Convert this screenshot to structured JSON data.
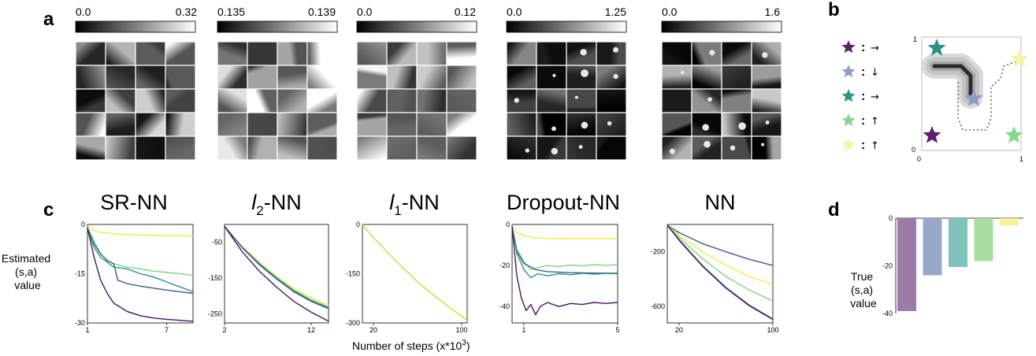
{
  "panel_letters": {
    "a": "a",
    "b": "b",
    "c": "c",
    "d": "d"
  },
  "heatmaps": [
    {
      "cb_min": "0.0",
      "cb_max": "0.32"
    },
    {
      "cb_min": "0.135",
      "cb_max": "0.139"
    },
    {
      "cb_min": "0.0",
      "cb_max": "0.12"
    },
    {
      "cb_min": "0.0",
      "cb_max": "1.25"
    },
    {
      "cb_min": "0.0",
      "cb_max": "1.6"
    }
  ],
  "panel_b": {
    "legend": [
      {
        "color": "#5b1f6e",
        "sep": ":",
        "arrow": "→"
      },
      {
        "color": "#8d9dc7",
        "sep": ":",
        "arrow": "↓"
      },
      {
        "color": "#2c8f8a",
        "sep": ":",
        "arrow": "→"
      },
      {
        "color": "#86d68f",
        "sep": ":",
        "arrow": "↑"
      },
      {
        "color": "#f6f2a6",
        "sep": ":",
        "arrow": "↑"
      }
    ],
    "axis": {
      "y_top": "1",
      "y_bottom": "0",
      "x_left": "0",
      "x_right": "1"
    }
  },
  "chart_data": [
    {
      "type": "line",
      "title": "SR-NN",
      "title_parts": {
        "main": "SR-NN"
      },
      "ylabel": "Estimated\n(s,a)\nvalue",
      "xlim": [
        1,
        9
      ],
      "ylim": [
        -30,
        0
      ],
      "xticks": [
        1,
        7
      ],
      "yticks": [
        0,
        -15,
        -30
      ],
      "series": [
        {
          "color": "#f2e94a",
          "x": [
            1,
            1.5,
            2,
            3,
            4,
            5,
            6,
            7,
            8,
            9
          ],
          "y": [
            -0.5,
            -1.8,
            -2.4,
            -2.9,
            -3.1,
            -3.2,
            -3.3,
            -3.4,
            -3.4,
            -3.5
          ]
        },
        {
          "color": "#7bd57e",
          "x": [
            1,
            1.5,
            2,
            2.5,
            3,
            4,
            5,
            6,
            7,
            8,
            9
          ],
          "y": [
            -1,
            -5,
            -9,
            -11,
            -12,
            -13,
            -13.5,
            -14.2,
            -14.6,
            -15,
            -15.5
          ]
        },
        {
          "color": "#3f5b8e",
          "x": [
            1,
            1.5,
            2,
            2.5,
            3,
            3.3,
            4,
            5,
            6,
            7,
            8,
            9
          ],
          "y": [
            -1,
            -6,
            -9,
            -11,
            -12,
            -17,
            -18,
            -18.8,
            -19.4,
            -20,
            -20.5,
            -21
          ]
        },
        {
          "color": "#2c8f8a",
          "x": [
            1,
            1.5,
            2,
            2.5,
            3,
            4,
            5,
            6,
            7,
            8,
            9
          ],
          "y": [
            -1,
            -7,
            -10,
            -11.5,
            -13,
            -13.5,
            -15,
            -16,
            -17.5,
            -19,
            -20.5
          ]
        },
        {
          "color": "#4b1264",
          "x": [
            1,
            1.5,
            2,
            2.5,
            3,
            4,
            5,
            6,
            7,
            8,
            9
          ],
          "y": [
            -1,
            -10,
            -17,
            -21,
            -24,
            -26.5,
            -27.8,
            -28.5,
            -28.9,
            -29.2,
            -29.5
          ]
        }
      ]
    },
    {
      "type": "line",
      "title": "l2-NN",
      "title_parts": {
        "italic": "l",
        "sub": "2",
        "rest": "-NN"
      },
      "xlim": [
        2,
        14
      ],
      "ylim": [
        -275,
        0
      ],
      "xticks": [
        2,
        12
      ],
      "yticks": [
        -50,
        -150,
        -250
      ],
      "series": [
        {
          "color": "#f2e94a",
          "x": [
            2,
            4,
            6,
            8,
            10,
            12,
            14
          ],
          "y": [
            -5,
            -60,
            -105,
            -145,
            -180,
            -205,
            -225
          ]
        },
        {
          "color": "#7bd57e",
          "x": [
            2,
            4,
            6,
            8,
            10,
            12,
            14
          ],
          "y": [
            -5,
            -62,
            -108,
            -148,
            -183,
            -210,
            -230
          ]
        },
        {
          "color": "#2c8f8a",
          "x": [
            2,
            4,
            6,
            8,
            10,
            12,
            14
          ],
          "y": [
            -5,
            -63,
            -110,
            -150,
            -186,
            -213,
            -233
          ]
        },
        {
          "color": "#3f5b8e",
          "x": [
            2,
            4,
            6,
            8,
            10,
            12,
            14
          ],
          "y": [
            -5,
            -64,
            -112,
            -152,
            -188,
            -215,
            -235
          ]
        },
        {
          "color": "#4b1264",
          "x": [
            2,
            4,
            6,
            8,
            10,
            12,
            14
          ],
          "y": [
            -5,
            -75,
            -130,
            -175,
            -215,
            -245,
            -270
          ]
        }
      ]
    },
    {
      "type": "line",
      "title": "l1-NN",
      "title_parts": {
        "italic": "l",
        "sub": "1",
        "rest": "-NN"
      },
      "xlim": [
        10,
        105
      ],
      "ylim": [
        -300,
        0
      ],
      "xticks": [
        20,
        100
      ],
      "yticks": [
        0,
        -150,
        -300
      ],
      "series": [
        {
          "color": "#4b1264",
          "x": [
            10,
            20,
            40,
            60,
            80,
            100,
            105
          ],
          "y": [
            -1,
            -40,
            -110,
            -175,
            -230,
            -280,
            -292
          ]
        },
        {
          "color": "#2c8f8a",
          "x": [
            10,
            20,
            40,
            60,
            80,
            100,
            105
          ],
          "y": [
            -1,
            -40,
            -110,
            -175,
            -230,
            -280,
            -292
          ]
        },
        {
          "color": "#7bd57e",
          "x": [
            10,
            20,
            40,
            60,
            80,
            100,
            105
          ],
          "y": [
            -1,
            -40,
            -110,
            -175,
            -230,
            -280,
            -292
          ]
        },
        {
          "color": "#f2e94a",
          "x": [
            10,
            20,
            40,
            60,
            80,
            100,
            105
          ],
          "y": [
            -1,
            -40,
            -110,
            -175,
            -230,
            -280,
            -292
          ]
        }
      ]
    },
    {
      "type": "line",
      "title": "Dropout-NN",
      "title_parts": {
        "main": "Dropout-NN"
      },
      "xlim": [
        0.5,
        5
      ],
      "ylim": [
        -48,
        0
      ],
      "xticks": [
        1,
        5
      ],
      "yticks": [
        0,
        -20,
        -40
      ],
      "series": [
        {
          "color": "#f2e94a",
          "x": [
            0.5,
            0.7,
            1,
            1.5,
            2,
            3,
            4,
            5
          ],
          "y": [
            -1,
            -4,
            -5.5,
            -6.5,
            -6.8,
            -7,
            -7,
            -7
          ]
        },
        {
          "color": "#7bd57e",
          "x": [
            0.5,
            0.7,
            1,
            1.3,
            1.6,
            2,
            2.5,
            3,
            3.5,
            4,
            4.5,
            5
          ],
          "y": [
            -1,
            -12,
            -18,
            -22,
            -21,
            -20,
            -20.5,
            -19.8,
            -20.2,
            -19.6,
            -20,
            -19.5
          ]
        },
        {
          "color": "#3f5b8e",
          "x": [
            0.5,
            0.7,
            1,
            1.5,
            2,
            3,
            4,
            5
          ],
          "y": [
            -1,
            -13,
            -19,
            -22,
            -23,
            -23.5,
            -23.7,
            -23.8
          ]
        },
        {
          "color": "#2c8f8a",
          "x": [
            0.5,
            0.7,
            1,
            1.3,
            1.6,
            2,
            2.5,
            3,
            3.5,
            4,
            4.5,
            5
          ],
          "y": [
            -1,
            -14,
            -22,
            -26,
            -24,
            -25,
            -24,
            -24.5,
            -23.8,
            -24.2,
            -23.9,
            -24
          ]
        },
        {
          "color": "#4b1264",
          "x": [
            0.5,
            0.7,
            0.9,
            1.1,
            1.3,
            1.5,
            1.7,
            2,
            2.5,
            3,
            3.5,
            4,
            4.5,
            5
          ],
          "y": [
            -1,
            -25,
            -36,
            -42,
            -39,
            -44,
            -40,
            -38,
            -40,
            -38.5,
            -39,
            -38,
            -38.5,
            -38
          ]
        }
      ]
    },
    {
      "type": "line",
      "title": "NN",
      "title_parts": {
        "main": "NN"
      },
      "xlim": [
        10,
        100
      ],
      "ylim": [
        -720,
        0
      ],
      "xticks": [
        20,
        100
      ],
      "yticks": [
        -200,
        -600
      ],
      "series": [
        {
          "color": "#3f5b8e",
          "x": [
            10,
            20,
            40,
            60,
            80,
            100
          ],
          "y": [
            -5,
            -60,
            -140,
            -200,
            -255,
            -300
          ]
        },
        {
          "color": "#f2e94a",
          "x": [
            10,
            20,
            40,
            60,
            80,
            100
          ],
          "y": [
            -5,
            -80,
            -200,
            -300,
            -380,
            -440
          ]
        },
        {
          "color": "#7bd57e",
          "x": [
            10,
            20,
            40,
            60,
            80,
            100
          ],
          "y": [
            -5,
            -95,
            -250,
            -380,
            -480,
            -560
          ]
        },
        {
          "color": "#2c8f8a",
          "x": [
            10,
            20,
            40,
            60,
            80,
            100
          ],
          "y": [
            -5,
            -110,
            -300,
            -460,
            -590,
            -690
          ]
        },
        {
          "color": "#4b1264",
          "x": [
            10,
            20,
            40,
            60,
            80,
            100
          ],
          "y": [
            -5,
            -115,
            -305,
            -465,
            -595,
            -695
          ]
        }
      ]
    },
    {
      "type": "bar",
      "ylabel": "True\n(s,a)\nvalue",
      "ylim": [
        -40,
        0
      ],
      "yticks": [
        0,
        -20,
        -40
      ],
      "categories": [
        "purple",
        "blue",
        "teal",
        "green",
        "yellow"
      ],
      "values": [
        -39,
        -24,
        -20.5,
        -18,
        -3
      ],
      "colors": [
        "#9e7aa8",
        "#9aa8c8",
        "#7ec3bc",
        "#a6dda1",
        "#f7ef9a"
      ]
    }
  ],
  "xlabel_shared": {
    "text": "Number of steps (x*10",
    "sup": "3",
    "close": ")"
  }
}
